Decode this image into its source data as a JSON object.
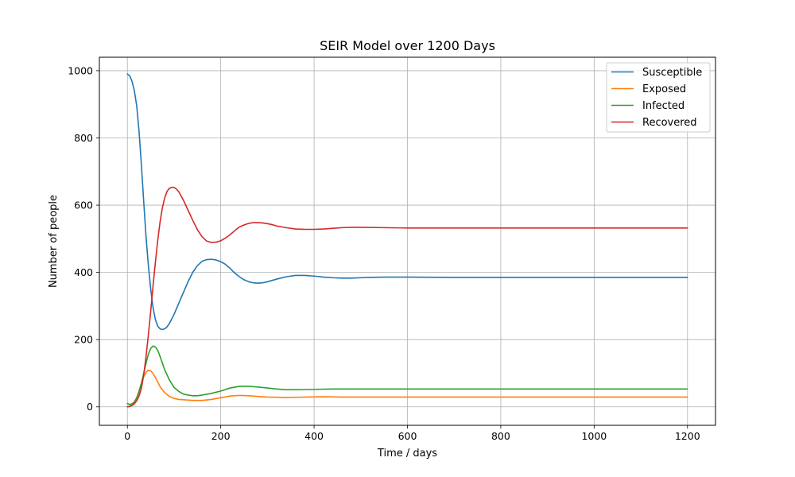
{
  "chart_data": {
    "type": "line",
    "title": "SEIR Model over 1200 Days",
    "xlabel": "Time / days",
    "ylabel": "Number of people",
    "xlim": [
      -60,
      1260
    ],
    "ylim": [
      -55,
      1040
    ],
    "xticks": [
      0,
      200,
      400,
      600,
      800,
      1000,
      1200
    ],
    "yticks": [
      0,
      200,
      400,
      600,
      800,
      1000
    ],
    "grid": true,
    "legend_position": "top-right",
    "series": [
      {
        "name": "Susceptible",
        "color": "#1f77b4",
        "x": [
          0,
          5,
          10,
          15,
          20,
          25,
          30,
          35,
          40,
          45,
          50,
          55,
          60,
          65,
          70,
          75,
          80,
          85,
          90,
          100,
          110,
          120,
          130,
          140,
          150,
          160,
          170,
          180,
          190,
          200,
          210,
          220,
          230,
          240,
          250,
          260,
          270,
          280,
          290,
          300,
          320,
          340,
          360,
          380,
          400,
          420,
          440,
          460,
          480,
          500,
          520,
          550,
          600,
          700,
          800,
          900,
          1000,
          1100,
          1200
        ],
        "values": [
          990,
          985,
          968,
          940,
          895,
          820,
          720,
          610,
          505,
          420,
          350,
          295,
          260,
          240,
          232,
          230,
          232,
          238,
          248,
          275,
          308,
          340,
          372,
          400,
          420,
          433,
          438,
          439,
          437,
          432,
          424,
          412,
          398,
          387,
          378,
          372,
          369,
          368,
          369,
          372,
          380,
          387,
          391,
          391,
          389,
          386,
          384,
          383,
          383,
          384,
          385,
          386,
          386,
          385,
          385,
          385,
          385,
          385,
          385
        ]
      },
      {
        "name": "Exposed",
        "color": "#ff7f0e",
        "x": [
          0,
          5,
          10,
          15,
          20,
          25,
          30,
          35,
          40,
          45,
          50,
          55,
          60,
          65,
          70,
          80,
          90,
          100,
          110,
          120,
          140,
          160,
          180,
          200,
          220,
          240,
          260,
          280,
          300,
          340,
          380,
          420,
          460,
          500,
          600,
          700,
          800,
          900,
          1000,
          1100,
          1200
        ],
        "values": [
          0,
          2,
          6,
          14,
          28,
          48,
          70,
          90,
          103,
          109,
          107,
          99,
          87,
          74,
          60,
          42,
          31,
          25,
          22,
          21,
          19,
          19,
          22,
          27,
          32,
          34,
          33,
          31,
          29,
          28,
          29,
          30,
          29,
          29,
          29,
          29,
          29,
          29,
          29,
          29,
          29
        ]
      },
      {
        "name": "Infected",
        "color": "#2ca02c",
        "x": [
          0,
          5,
          10,
          15,
          20,
          25,
          30,
          35,
          40,
          45,
          50,
          55,
          60,
          65,
          70,
          75,
          80,
          90,
          100,
          110,
          120,
          130,
          140,
          150,
          160,
          180,
          200,
          220,
          240,
          260,
          280,
          300,
          320,
          340,
          360,
          400,
          440,
          480,
          520,
          600,
          700,
          800,
          900,
          1000,
          1100,
          1200
        ],
        "values": [
          10,
          7,
          9,
          15,
          26,
          44,
          70,
          100,
          130,
          157,
          174,
          181,
          178,
          168,
          150,
          130,
          110,
          80,
          58,
          46,
          38,
          35,
          33,
          33,
          35,
          40,
          47,
          56,
          61,
          61,
          59,
          56,
          53,
          51,
          51,
          52,
          53,
          53,
          53,
          53,
          53,
          53,
          53,
          53,
          53,
          53
        ]
      },
      {
        "name": "Recovered",
        "color": "#d62728",
        "x": [
          0,
          5,
          10,
          15,
          20,
          25,
          30,
          35,
          40,
          45,
          50,
          55,
          60,
          65,
          70,
          75,
          80,
          85,
          90,
          95,
          100,
          105,
          110,
          120,
          130,
          140,
          150,
          160,
          170,
          180,
          190,
          200,
          210,
          220,
          230,
          240,
          250,
          260,
          270,
          280,
          290,
          300,
          310,
          320,
          340,
          360,
          380,
          400,
          420,
          440,
          460,
          480,
          500,
          550,
          600,
          700,
          800,
          900,
          1000,
          1100,
          1200
        ],
        "values": [
          0,
          1,
          4,
          9,
          18,
          32,
          55,
          95,
          150,
          215,
          285,
          360,
          430,
          495,
          550,
          592,
          622,
          641,
          650,
          653,
          653,
          648,
          640,
          615,
          585,
          555,
          527,
          506,
          493,
          489,
          490,
          494,
          502,
          512,
          524,
          535,
          541,
          546,
          548,
          548,
          547,
          545,
          542,
          538,
          533,
          529,
          528,
          528,
          529,
          531,
          533,
          534,
          534,
          533,
          532,
          532,
          532,
          532,
          532,
          532,
          532
        ]
      }
    ]
  }
}
